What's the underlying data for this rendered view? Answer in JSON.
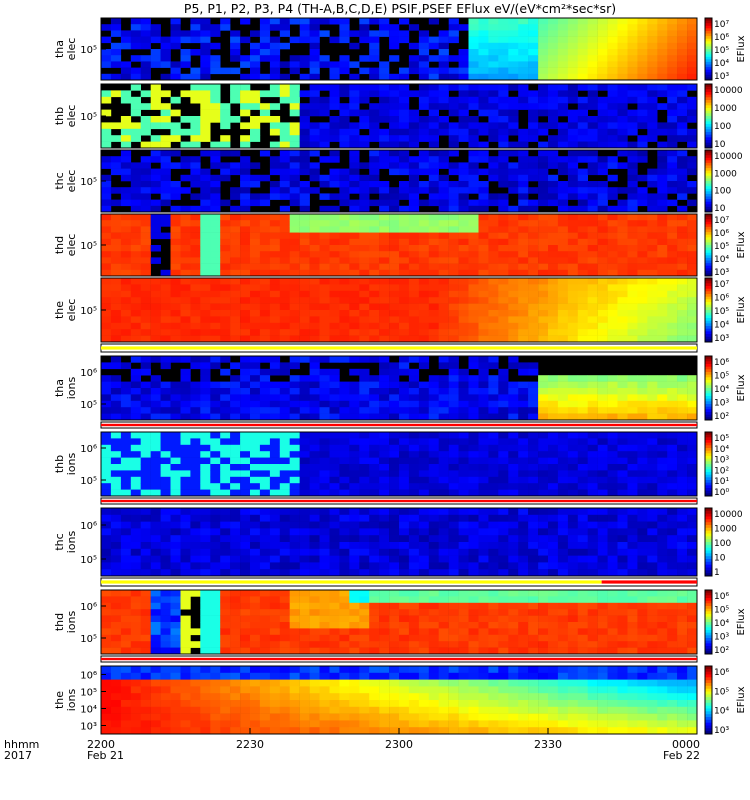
{
  "title": "P5, P1, P2, P3, P4 (TH-A,B,C,D,E) PSIF,PSEF EFlux eV/(eV*cm²*sec*sr)",
  "bottom_labels": {
    "time_unit": "hhmm",
    "year": "2017"
  },
  "colors": {
    "jet": [
      "#000080",
      "#0000ff",
      "#0080ff",
      "#00ffff",
      "#80ff80",
      "#ffff00",
      "#ff8000",
      "#ff0000",
      "#800000"
    ],
    "background_dark": "#000000",
    "quality_bar_white": "#ffffff",
    "quality_bar_yellow": "#ffff00",
    "quality_bar_red": "#ff0000"
  },
  "chart_data": {
    "type": "heatmap",
    "x_ticks": [
      {
        "label": "2200",
        "sub": "Feb 21",
        "frac": 0.0
      },
      {
        "label": "2230",
        "sub": "",
        "frac": 0.25
      },
      {
        "label": "2300",
        "sub": "",
        "frac": 0.5
      },
      {
        "label": "2330",
        "sub": "",
        "frac": 0.75
      },
      {
        "label": "0000",
        "sub": "Feb 22",
        "frac": 1.0
      }
    ],
    "panels": [
      {
        "id": "tha-elec",
        "probe": "tha",
        "species": "elec",
        "y_ticks": [
          "10⁵"
        ],
        "colorbar_ticks": [
          "10⁷",
          "10⁶",
          "10⁵",
          "10⁴",
          "10³"
        ],
        "colorbar_label": "EFlux",
        "quality_bar": ""
      },
      {
        "id": "thb-elec",
        "probe": "thb",
        "species": "elec",
        "y_ticks": [
          "10⁵"
        ],
        "colorbar_ticks": [
          "10000",
          "1000",
          "100",
          "10"
        ],
        "colorbar_label": "",
        "quality_bar": ""
      },
      {
        "id": "thc-elec",
        "probe": "thc",
        "species": "elec",
        "y_ticks": [
          "10⁵"
        ],
        "colorbar_ticks": [
          "10000",
          "1000",
          "100",
          "10"
        ],
        "colorbar_label": "",
        "quality_bar": ""
      },
      {
        "id": "thd-elec",
        "probe": "thd",
        "species": "elec",
        "y_ticks": [
          "10⁵"
        ],
        "colorbar_ticks": [
          "10⁷",
          "10⁶",
          "10⁵",
          "10⁴",
          "10³"
        ],
        "colorbar_label": "EFlux",
        "quality_bar": ""
      },
      {
        "id": "the-elec",
        "probe": "the",
        "species": "elec",
        "y_ticks": [
          "10⁵"
        ],
        "colorbar_ticks": [
          "10⁷",
          "10⁶",
          "10⁵",
          "10⁴",
          "10³"
        ],
        "colorbar_label": "EFlux",
        "quality_bar": "yellow"
      },
      {
        "id": "tha-ions",
        "probe": "tha",
        "species": "ions",
        "y_ticks": [
          "10⁶",
          "10⁵"
        ],
        "colorbar_ticks": [
          "10⁶",
          "10⁵",
          "10⁴",
          "10³",
          "10²"
        ],
        "colorbar_label": "EFlux",
        "quality_bar": "red"
      },
      {
        "id": "thb-ions",
        "probe": "thb",
        "species": "ions",
        "y_ticks": [
          "10⁶",
          "10⁵"
        ],
        "colorbar_ticks": [
          "10⁵",
          "10⁴",
          "10³",
          "10²",
          "10¹",
          "10⁰"
        ],
        "colorbar_label": "",
        "quality_bar": "red"
      },
      {
        "id": "thc-ions",
        "probe": "thc",
        "species": "ions",
        "y_ticks": [
          "10⁶",
          "10⁵"
        ],
        "colorbar_ticks": [
          "10000",
          "1000",
          "100",
          "10",
          "1"
        ],
        "colorbar_label": "",
        "quality_bar": "yellow-red"
      },
      {
        "id": "thd-ions",
        "probe": "thd",
        "species": "ions",
        "y_ticks": [
          "10⁶",
          "10⁵"
        ],
        "colorbar_ticks": [
          "10⁶",
          "10⁵",
          "10⁴",
          "10³",
          "10²"
        ],
        "colorbar_label": "EFlux",
        "quality_bar": "red"
      },
      {
        "id": "the-ions",
        "probe": "the",
        "species": "ions",
        "y_ticks": [
          "10⁶",
          "10⁵",
          "10⁴",
          "10³"
        ],
        "colorbar_ticks": [
          "10⁶",
          "10⁵",
          "10⁴",
          "10³"
        ],
        "colorbar_label": "EFlux",
        "quality_bar": ""
      }
    ]
  }
}
